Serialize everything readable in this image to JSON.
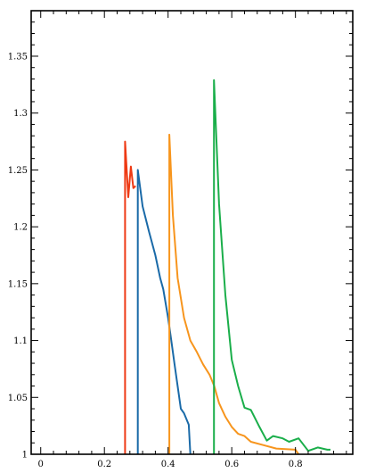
{
  "chart_data": {
    "type": "line",
    "title": "",
    "xlabel": "",
    "ylabel": "",
    "xlim": [
      -0.03,
      0.98
    ],
    "ylim": [
      1.0,
      1.39
    ],
    "grid": false,
    "legend": "none",
    "x_ticks": [
      0,
      0.2,
      0.4,
      0.6,
      0.8
    ],
    "x_tick_labels": [
      "0",
      "0.2",
      "0.4",
      "0.6",
      "0.8"
    ],
    "y_ticks": [
      1.0,
      1.05,
      1.1,
      1.15,
      1.2,
      1.25,
      1.3,
      1.35
    ],
    "y_tick_labels": [
      "1",
      "1.05",
      "1.1",
      "1.15",
      "1.2",
      "1.25",
      "1.3",
      "1.35"
    ],
    "series": [
      {
        "color": "#ee3a14",
        "points": [
          [
            0.265,
            1.0
          ],
          [
            0.265,
            1.275
          ],
          [
            0.275,
            1.226
          ],
          [
            0.283,
            1.253
          ],
          [
            0.291,
            1.234
          ],
          [
            0.298,
            1.236
          ]
        ]
      },
      {
        "color": "#1a6aa8",
        "points": [
          [
            0.305,
            1.0
          ],
          [
            0.305,
            1.25
          ],
          [
            0.32,
            1.218
          ],
          [
            0.34,
            1.196
          ],
          [
            0.36,
            1.175
          ],
          [
            0.375,
            1.155
          ],
          [
            0.385,
            1.145
          ],
          [
            0.4,
            1.12
          ],
          [
            0.41,
            1.1
          ],
          [
            0.42,
            1.08
          ],
          [
            0.43,
            1.06
          ],
          [
            0.44,
            1.04
          ],
          [
            0.45,
            1.036
          ],
          [
            0.465,
            1.026
          ],
          [
            0.47,
            1.0
          ]
        ]
      },
      {
        "color": "#f7951d",
        "points": [
          [
            0.404,
            1.0
          ],
          [
            0.404,
            1.281
          ],
          [
            0.415,
            1.21
          ],
          [
            0.43,
            1.155
          ],
          [
            0.45,
            1.12
          ],
          [
            0.47,
            1.1
          ],
          [
            0.49,
            1.09
          ],
          [
            0.51,
            1.079
          ],
          [
            0.53,
            1.07
          ],
          [
            0.545,
            1.06
          ],
          [
            0.56,
            1.045
          ],
          [
            0.58,
            1.033
          ],
          [
            0.6,
            1.024
          ],
          [
            0.62,
            1.018
          ],
          [
            0.64,
            1.016
          ],
          [
            0.66,
            1.011
          ],
          [
            0.7,
            1.008
          ],
          [
            0.74,
            1.005
          ],
          [
            0.8,
            1.004
          ],
          [
            0.81,
            1.0
          ]
        ]
      },
      {
        "color": "#1aae4a",
        "points": [
          [
            0.544,
            1.0
          ],
          [
            0.544,
            1.329
          ],
          [
            0.56,
            1.22
          ],
          [
            0.58,
            1.14
          ],
          [
            0.6,
            1.083
          ],
          [
            0.62,
            1.06
          ],
          [
            0.64,
            1.041
          ],
          [
            0.66,
            1.039
          ],
          [
            0.685,
            1.025
          ],
          [
            0.71,
            1.012
          ],
          [
            0.73,
            1.016
          ],
          [
            0.76,
            1.014
          ],
          [
            0.78,
            1.011
          ],
          [
            0.81,
            1.014
          ],
          [
            0.84,
            1.003
          ],
          [
            0.87,
            1.006
          ],
          [
            0.9,
            1.004
          ],
          [
            0.91,
            1.004
          ]
        ]
      }
    ]
  }
}
